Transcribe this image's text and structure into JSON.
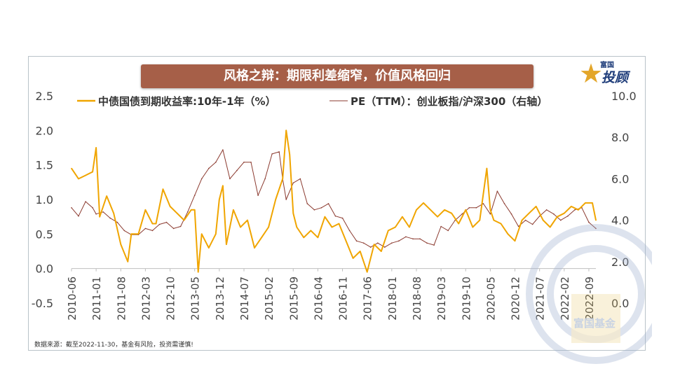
{
  "title": "风格之辩：期限利差缩窄，价值风格回归",
  "logo": {
    "small": "富国",
    "big": "投顾",
    "star": "★",
    "watermark": "富国基金"
  },
  "source": "数据来源：截至2022-11-30，基金有风险，投资需谨慎!",
  "colors": {
    "series1": "#f0a500",
    "series2": "#8b3a2f",
    "banner": "#a65f48",
    "axis": "#bfbfbf",
    "brand": "#1f3d7a"
  },
  "chart_data": {
    "type": "line",
    "title": "",
    "xlabel": "",
    "ylabel": "",
    "ylim_left": [
      -0.5,
      2.5
    ],
    "yticks_left": [
      "2.5",
      "2.0",
      "1.5",
      "1.0",
      "0.5",
      "0.0",
      "-0.5"
    ],
    "ylim_right": [
      0.0,
      10.0
    ],
    "yticks_right": [
      "10.0",
      "8.0",
      "6.0",
      "4.0",
      "2.0",
      "0.0"
    ],
    "xlim": [
      "2010-06",
      "2022-11"
    ],
    "xticks": [
      "2010-06",
      "2011-01",
      "2011-08",
      "2012-03",
      "2012-10",
      "2013-05",
      "2013-12",
      "2014-07",
      "2015-02",
      "2015-09",
      "2016-04",
      "2016-11",
      "2017-06",
      "2018-01",
      "2018-08",
      "2019-03",
      "2019-10",
      "2020-05",
      "2020-12",
      "2021-07",
      "2022-02",
      "2022-09"
    ],
    "legend_position": "top",
    "series": [
      {
        "name": "中债国债到期收益率:10年-1年（%）",
        "axis": "left",
        "x": [
          "2010-06",
          "2010-08",
          "2010-10",
          "2010-12",
          "2011-01",
          "2011-02",
          "2011-04",
          "2011-06",
          "2011-08",
          "2011-10",
          "2011-11",
          "2012-01",
          "2012-03",
          "2012-05",
          "2012-06",
          "2012-08",
          "2012-10",
          "2012-12",
          "2013-02",
          "2013-04",
          "2013-05",
          "2013-06",
          "2013-07",
          "2013-09",
          "2013-11",
          "2013-12",
          "2014-01",
          "2014-02",
          "2014-04",
          "2014-06",
          "2014-08",
          "2014-10",
          "2014-12",
          "2015-02",
          "2015-04",
          "2015-06",
          "2015-07",
          "2015-08",
          "2015-09",
          "2015-10",
          "2015-12",
          "2016-02",
          "2016-04",
          "2016-06",
          "2016-08",
          "2016-10",
          "2016-12",
          "2017-02",
          "2017-04",
          "2017-06",
          "2017-08",
          "2017-10",
          "2017-12",
          "2018-02",
          "2018-04",
          "2018-06",
          "2018-08",
          "2018-10",
          "2018-12",
          "2019-02",
          "2019-04",
          "2019-06",
          "2019-08",
          "2019-10",
          "2019-12",
          "2020-02",
          "2020-04",
          "2020-05",
          "2020-06",
          "2020-08",
          "2020-10",
          "2020-12",
          "2021-02",
          "2021-04",
          "2021-06",
          "2021-08",
          "2021-10",
          "2021-12",
          "2022-02",
          "2022-04",
          "2022-06",
          "2022-08",
          "2022-10",
          "2022-11"
        ],
        "values": [
          1.45,
          1.3,
          1.35,
          1.4,
          1.75,
          0.75,
          1.05,
          0.8,
          0.35,
          0.1,
          0.5,
          0.5,
          0.85,
          0.65,
          0.65,
          1.15,
          0.9,
          0.8,
          0.7,
          0.85,
          0.85,
          -0.05,
          0.5,
          0.3,
          0.5,
          1.0,
          1.2,
          0.35,
          0.85,
          0.6,
          0.7,
          0.3,
          0.45,
          0.6,
          1.0,
          1.3,
          2.0,
          1.65,
          0.8,
          0.6,
          0.45,
          0.55,
          0.45,
          0.75,
          0.6,
          0.65,
          0.4,
          0.15,
          0.25,
          -0.05,
          0.35,
          0.25,
          0.55,
          0.6,
          0.75,
          0.6,
          0.85,
          0.95,
          0.85,
          0.75,
          0.85,
          0.8,
          0.65,
          0.85,
          0.6,
          0.7,
          1.45,
          0.85,
          0.7,
          0.65,
          0.5,
          0.4,
          0.7,
          0.8,
          0.9,
          0.7,
          0.6,
          0.75,
          0.8,
          0.9,
          0.85,
          0.95,
          0.95,
          0.7
        ]
      },
      {
        "name": "PE（TTM）：创业板指/沪深300（右轴）",
        "axis": "right",
        "x": [
          "2010-06",
          "2010-08",
          "2010-10",
          "2010-12",
          "2011-01",
          "2011-03",
          "2011-05",
          "2011-07",
          "2011-09",
          "2011-11",
          "2012-01",
          "2012-03",
          "2012-05",
          "2012-07",
          "2012-09",
          "2012-11",
          "2013-01",
          "2013-03",
          "2013-05",
          "2013-07",
          "2013-09",
          "2013-11",
          "2014-01",
          "2014-03",
          "2014-05",
          "2014-07",
          "2014-09",
          "2014-11",
          "2015-01",
          "2015-03",
          "2015-05",
          "2015-06",
          "2015-07",
          "2015-09",
          "2015-11",
          "2016-01",
          "2016-03",
          "2016-05",
          "2016-07",
          "2016-09",
          "2016-11",
          "2017-01",
          "2017-03",
          "2017-05",
          "2017-07",
          "2017-09",
          "2017-11",
          "2018-01",
          "2018-03",
          "2018-05",
          "2018-07",
          "2018-09",
          "2018-11",
          "2019-01",
          "2019-03",
          "2019-05",
          "2019-07",
          "2019-09",
          "2019-11",
          "2020-01",
          "2020-03",
          "2020-05",
          "2020-07",
          "2020-09",
          "2020-11",
          "2021-01",
          "2021-03",
          "2021-05",
          "2021-07",
          "2021-09",
          "2021-11",
          "2022-01",
          "2022-03",
          "2022-05",
          "2022-07",
          "2022-09",
          "2022-11"
        ],
        "values": [
          4.6,
          4.2,
          4.9,
          4.6,
          4.3,
          4.4,
          4.1,
          3.9,
          3.5,
          3.3,
          3.3,
          3.6,
          3.5,
          3.8,
          3.9,
          3.6,
          3.7,
          4.4,
          5.2,
          6.0,
          6.5,
          6.8,
          7.4,
          6.0,
          6.4,
          6.8,
          6.8,
          5.2,
          6.0,
          7.2,
          7.3,
          6.0,
          5.0,
          5.8,
          6.0,
          4.8,
          4.5,
          4.6,
          4.8,
          4.2,
          4.1,
          3.5,
          3.0,
          2.9,
          2.7,
          2.9,
          2.7,
          2.9,
          3.0,
          3.2,
          3.1,
          3.1,
          2.9,
          2.8,
          3.7,
          3.5,
          4.0,
          4.3,
          4.6,
          4.6,
          4.8,
          4.3,
          5.4,
          4.8,
          4.3,
          3.7,
          4.0,
          3.8,
          4.2,
          4.5,
          4.3,
          4.0,
          4.2,
          4.5,
          4.6,
          3.9,
          3.6
        ]
      }
    ]
  }
}
